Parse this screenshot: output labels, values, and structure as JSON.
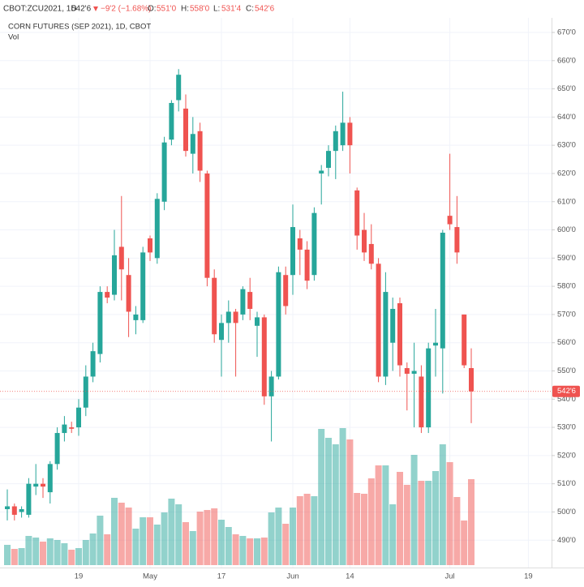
{
  "header": {
    "symbol": "CBOT:ZCU2021, 1D",
    "last": "542'6",
    "change": "−9'2 (−1.68%)",
    "open_label": "O:",
    "open": "551'0",
    "high_label": "H:",
    "high": "558'0",
    "low_label": "L:",
    "low": "531'4",
    "close_label": "C:",
    "close": "542'6"
  },
  "chart_data": {
    "type": "candlestick",
    "title": "CORN FUTURES (SEP 2021), 1D, CBOT",
    "volume_label": "Vol",
    "categories": [
      null,
      null,
      null,
      null,
      null,
      null,
      null,
      null,
      null,
      null,
      "19",
      null,
      null,
      null,
      null,
      null,
      null,
      null,
      null,
      null,
      "May",
      null,
      null,
      null,
      null,
      null,
      null,
      null,
      null,
      null,
      "17",
      null,
      null,
      null,
      null,
      null,
      null,
      null,
      null,
      null,
      "Jun",
      null,
      null,
      null,
      null,
      null,
      null,
      null,
      "14",
      null,
      null,
      null,
      null,
      null,
      null,
      null,
      null,
      null,
      null,
      null,
      null,
      null,
      "Jul",
      null,
      null,
      null,
      null,
      null,
      null,
      null,
      null,
      null,
      null,
      "19",
      null,
      null
    ],
    "open": [
      501,
      502,
      500,
      499,
      509,
      510,
      507,
      517,
      528,
      530,
      530,
      537,
      548,
      556,
      578,
      577,
      594,
      584,
      568,
      568,
      597,
      590,
      610,
      632,
      646,
      643,
      627,
      635,
      620,
      583,
      561,
      567,
      571,
      570,
      578,
      566,
      569,
      541,
      548,
      584,
      584,
      597,
      593,
      584,
      620,
      622,
      628,
      630,
      638,
      614,
      600,
      595,
      588,
      548,
      560,
      574,
      551,
      549,
      548,
      530,
      559,
      558,
      605,
      601,
      570,
      551,
      null,
      null,
      null,
      null,
      null,
      null,
      null,
      null,
      null,
      null
    ],
    "high": [
      508,
      503,
      502,
      512,
      517,
      512,
      518,
      530,
      534,
      532,
      540,
      552,
      560,
      580,
      580,
      600,
      612,
      590,
      573,
      594,
      598,
      613,
      633,
      646,
      657,
      648,
      640,
      638,
      621,
      586,
      570,
      575,
      572,
      580,
      583,
      571,
      570,
      550,
      587,
      587,
      609,
      600,
      596,
      608,
      623,
      630,
      637,
      649,
      640,
      615,
      606,
      602,
      590,
      585,
      576,
      576,
      553,
      560,
      552,
      560,
      572,
      600,
      627,
      612,
      570,
      558,
      null,
      null,
      null,
      null,
      null,
      null,
      null,
      null,
      null,
      null
    ],
    "low": [
      497,
      497,
      498,
      498,
      506,
      505,
      503,
      515,
      525,
      528,
      527,
      534,
      546,
      553,
      574,
      575,
      575,
      562,
      563,
      567,
      589,
      588,
      607,
      630,
      642,
      626,
      620,
      617,
      580,
      560,
      548,
      560,
      548,
      568,
      568,
      555,
      538,
      525,
      547,
      570,
      577,
      584,
      579,
      582,
      609,
      619,
      618,
      628,
      620,
      593,
      589,
      586,
      546,
      545,
      550,
      548,
      536,
      530,
      528,
      528,
      548,
      542,
      600,
      588,
      551,
      531.5,
      null,
      null,
      null,
      null,
      null,
      null,
      null,
      null,
      null,
      null
    ],
    "close": [
      502,
      499,
      501,
      510,
      510,
      509,
      517,
      528,
      531,
      529.5,
      537,
      548,
      557,
      578,
      576,
      591,
      586,
      571,
      570,
      592,
      592,
      611,
      631,
      645,
      655,
      628,
      634,
      621,
      583,
      563,
      567,
      571,
      567,
      579,
      572,
      569,
      541,
      548,
      585,
      573,
      601,
      593,
      582,
      606,
      621,
      628,
      635,
      638,
      630,
      598,
      592,
      588,
      548,
      578,
      572,
      552,
      549,
      550,
      530,
      558,
      560,
      599,
      602,
      592,
      552,
      542.75,
      null,
      null,
      null,
      null,
      null,
      null,
      null,
      null,
      null,
      null
    ],
    "volume": [
      25,
      20,
      21,
      36,
      34,
      29,
      33,
      31,
      27,
      19,
      21,
      31,
      39,
      61,
      38,
      83,
      77,
      71,
      45,
      59,
      59,
      50,
      65,
      82,
      75,
      53,
      42,
      66,
      68,
      70,
      56,
      47,
      38,
      36,
      33,
      33,
      34,
      65,
      71,
      51,
      71,
      85,
      88,
      85,
      168,
      157,
      149,
      169,
      155,
      89,
      88,
      107,
      123,
      123,
      75,
      115,
      99,
      136,
      104,
      104,
      116,
      149,
      127,
      84,
      55,
      106,
      null,
      null,
      null,
      null,
      null,
      null,
      null,
      null,
      null,
      null
    ],
    "up_color": "#26a69a",
    "down_color": "#ef5350",
    "last_price": {
      "value": 542.75,
      "label": "542'6"
    },
    "ylim": [
      480.3,
      674.6
    ],
    "yticks": [
      {
        "value": 490,
        "label": "490'0"
      },
      {
        "value": 500,
        "label": "500'0"
      },
      {
        "value": 510,
        "label": "510'0"
      },
      {
        "value": 520,
        "label": "520'0"
      },
      {
        "value": 530,
        "label": "530'0"
      },
      {
        "value": 540,
        "label": "540'0"
      },
      {
        "value": 550,
        "label": "550'0"
      },
      {
        "value": 560,
        "label": "560'0"
      },
      {
        "value": 570,
        "label": "570'0"
      },
      {
        "value": 580,
        "label": "580'0"
      },
      {
        "value": 590,
        "label": "590'0"
      },
      {
        "value": 600,
        "label": "600'0"
      },
      {
        "value": 610,
        "label": "610'0"
      },
      {
        "value": 620,
        "label": "620'0"
      },
      {
        "value": 630,
        "label": "630'0"
      },
      {
        "value": 640,
        "label": "640'0"
      },
      {
        "value": 650,
        "label": "650'0"
      },
      {
        "value": 660,
        "label": "660'0"
      },
      {
        "value": 670,
        "label": "670'0"
      }
    ],
    "grid": true
  }
}
